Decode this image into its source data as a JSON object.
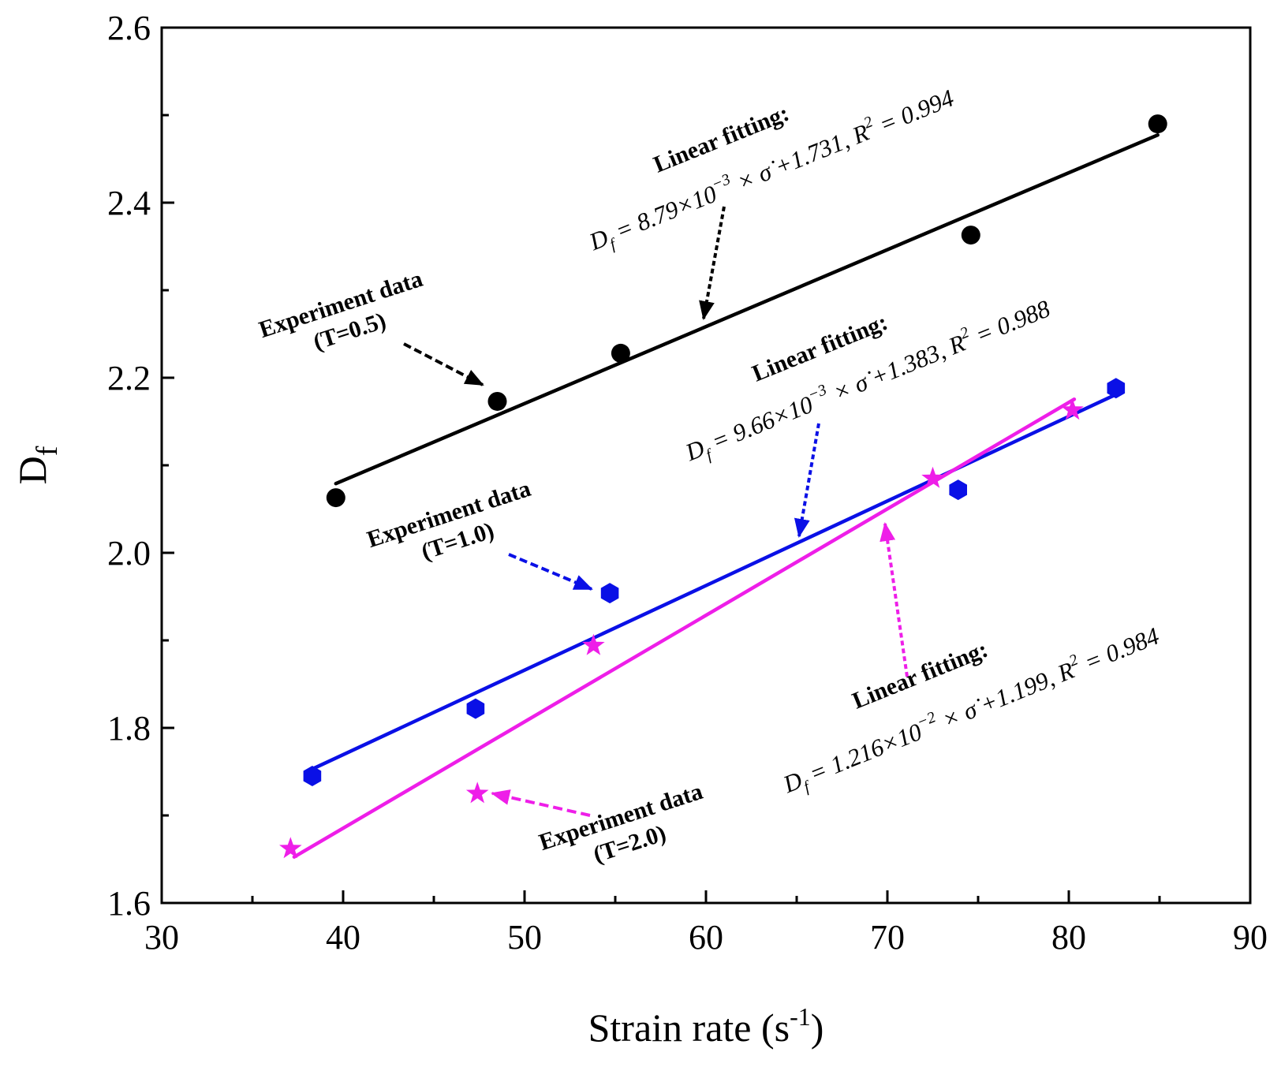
{
  "chart_data": {
    "type": "scatter",
    "title": "",
    "xlabel": "Strain rate (s",
    "xlabel_sup": "-1",
    "xlabel_end": ")",
    "ylabel": "D",
    "ylabel_sub": "f",
    "xlim": [
      30,
      90
    ],
    "ylim": [
      1.6,
      2.6
    ],
    "xticks": [
      "30",
      "40",
      "50",
      "60",
      "70",
      "80",
      "90"
    ],
    "yticks": [
      "1.6",
      "1.8",
      "2.0",
      "2.2",
      "2.4",
      "2.6"
    ],
    "grid": false,
    "series": [
      {
        "name": "T=0.5",
        "marker": "circle",
        "color": "#000000",
        "x": [
          39.6,
          48.5,
          55.3,
          74.6,
          84.9
        ],
        "y": [
          2.063,
          2.173,
          2.228,
          2.363,
          2.49
        ],
        "fit": {
          "slope": 0.00879,
          "intercept": 1.731,
          "x_range": [
            39.6,
            84.9
          ]
        },
        "experiment_label": [
          "Experiment data",
          "(T=0.5)"
        ],
        "fit_title": "Linear fitting:",
        "fit_eq": "D",
        "fit_eq_sub": "f",
        "fit_eq_mid": " = 8.79×10",
        "fit_eq_exp": "−3",
        "fit_eq_tail": " × σ̇ +1.731, R",
        "fit_eq_r2exp": "2",
        "fit_eq_end": " = 0.994"
      },
      {
        "name": "T=1.0",
        "marker": "hexagon",
        "color": "#0a10e6",
        "x": [
          38.3,
          47.3,
          54.7,
          73.9,
          82.6
        ],
        "y": [
          1.745,
          1.822,
          1.954,
          2.072,
          2.188
        ],
        "fit": {
          "slope": 0.00966,
          "intercept": 1.383,
          "x_range": [
            38.3,
            82.6
          ]
        },
        "experiment_label": [
          "Experiment data",
          "(T=1.0)"
        ],
        "fit_title": "Linear fitting:",
        "fit_eq": "D",
        "fit_eq_sub": "f",
        "fit_eq_mid": " = 9.66×10",
        "fit_eq_exp": "−3",
        "fit_eq_tail": " × σ̇ +1.383, R",
        "fit_eq_r2exp": "2",
        "fit_eq_end": " = 0.988"
      },
      {
        "name": "T=2.0",
        "marker": "star",
        "color": "#ee1ee8",
        "x": [
          37.1,
          47.4,
          53.8,
          72.5,
          80.2
        ],
        "y": [
          1.662,
          1.725,
          1.894,
          2.085,
          2.163
        ],
        "fit": {
          "slope": 0.01216,
          "intercept": 1.199,
          "x_range": [
            37.3,
            80.3
          ]
        },
        "experiment_label": [
          "Experiment data",
          "(T=2.0)"
        ],
        "fit_title": "Linear fitting:",
        "fit_eq": "D",
        "fit_eq_sub": "f",
        "fit_eq_mid": " = 1.216×10",
        "fit_eq_exp": "−2",
        "fit_eq_tail": " × σ̇ +1.199, R",
        "fit_eq_r2exp": "2",
        "fit_eq_end": " = 0.984"
      }
    ]
  }
}
